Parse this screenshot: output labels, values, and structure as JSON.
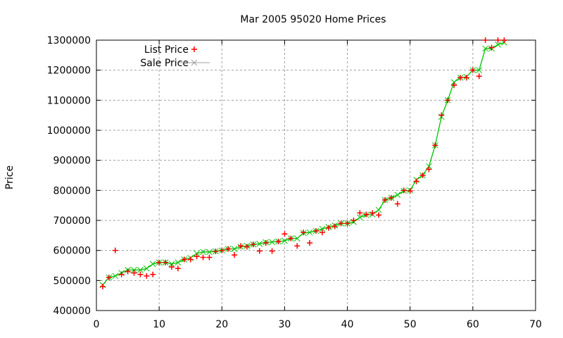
{
  "chart_data": {
    "type": "line",
    "title": "Mar 2005 95020 Home Prices",
    "xlabel": "",
    "ylabel": "Price",
    "xlim": [
      0,
      70
    ],
    "ylim": [
      400000,
      1300000
    ],
    "xticks": [
      0,
      10,
      20,
      30,
      40,
      50,
      60,
      70
    ],
    "yticks": [
      400000,
      500000,
      600000,
      700000,
      800000,
      900000,
      1000000,
      1100000,
      1200000,
      1300000
    ],
    "grid": true,
    "legend_position": "top-left",
    "x": [
      1,
      2,
      3,
      4,
      5,
      6,
      7,
      8,
      9,
      10,
      11,
      12,
      13,
      14,
      15,
      16,
      17,
      18,
      19,
      20,
      21,
      22,
      23,
      24,
      25,
      26,
      27,
      28,
      29,
      30,
      31,
      32,
      33,
      34,
      35,
      36,
      37,
      38,
      39,
      40,
      41,
      42,
      43,
      44,
      45,
      46,
      47,
      48,
      49,
      50,
      51,
      52,
      53,
      54,
      55,
      56,
      57,
      58,
      59,
      60,
      61,
      62,
      63,
      64,
      65
    ],
    "series": [
      {
        "name": "List Price",
        "style": "points",
        "marker": "+",
        "color": "#ff0000",
        "values": [
          480000,
          510000,
          600000,
          520000,
          530000,
          525000,
          520000,
          515000,
          520000,
          560000,
          560000,
          545000,
          540000,
          570000,
          570000,
          580000,
          577000,
          577000,
          597000,
          600000,
          605000,
          585000,
          615000,
          612000,
          620000,
          598000,
          625000,
          598000,
          630000,
          655000,
          640000,
          615000,
          660000,
          625000,
          665000,
          660000,
          675000,
          680000,
          690000,
          690000,
          700000,
          725000,
          720000,
          725000,
          718000,
          768000,
          775000,
          755000,
          800000,
          798000,
          830000,
          850000,
          870000,
          950000,
          1050000,
          1100000,
          1150000,
          1175000,
          1175000,
          1200000,
          1180000,
          1300000,
          1275000,
          1300000,
          1300000
        ]
      },
      {
        "name": "Sale Price",
        "style": "linespoints",
        "marker": "x",
        "color": "#00c000",
        "legend_color": "#a0a0a0",
        "values": [
          485000,
          510000,
          515000,
          525000,
          535000,
          535000,
          535000,
          540000,
          555000,
          560000,
          560000,
          555000,
          560000,
          570000,
          575000,
          590000,
          595000,
          595000,
          597000,
          600000,
          605000,
          605000,
          612000,
          615000,
          620000,
          622000,
          627000,
          628000,
          630000,
          632000,
          640000,
          640000,
          658000,
          660000,
          665000,
          672000,
          678000,
          683000,
          690000,
          690000,
          695000,
          710000,
          718000,
          720000,
          735000,
          768000,
          775000,
          785000,
          798000,
          800000,
          835000,
          850000,
          880000,
          950000,
          1045000,
          1100000,
          1160000,
          1175000,
          1178000,
          1200000,
          1200000,
          1272000,
          1272000,
          1285000,
          1292000
        ]
      }
    ]
  }
}
